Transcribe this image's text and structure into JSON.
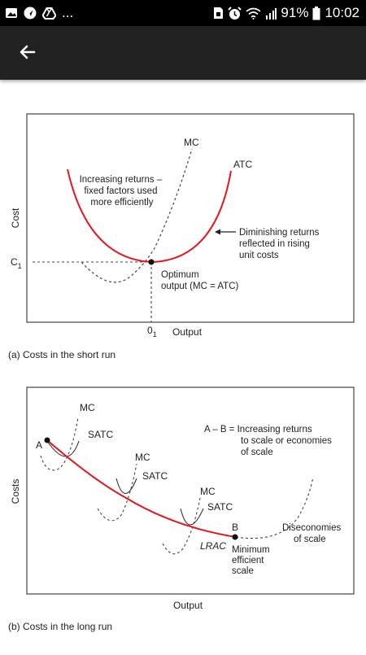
{
  "status_bar": {
    "overflow_text": "...",
    "battery_percent": "91%",
    "time": "10:02",
    "left_icons": [
      "gallery-icon",
      "navigation-icon",
      "drive-icon"
    ],
    "right_icons": [
      "sim-icon",
      "alarm-icon",
      "wifi-icon",
      "signal-icon",
      "battery-icon"
    ]
  },
  "app_bar": {
    "back_icon": "arrow-left-icon",
    "color": "#212121"
  },
  "figure": {
    "accent_color": "#e8131b",
    "short_run": {
      "caption": "(a) Costs in the short run",
      "ylabel": "Cost",
      "xlabel": "Output",
      "y_tick": "C",
      "y_tick_sub": "1",
      "x_tick": "0",
      "x_tick_sub": "1",
      "mc_label": "MC",
      "atc_label": "ATC",
      "increasing_lines": [
        "Increasing returns –",
        "fixed factors used",
        "more efficiently"
      ],
      "diminishing_lines": [
        "Diminishing returns",
        "reflected in rising",
        "unit costs"
      ],
      "optimum_lines": [
        "Optimum",
        "output (MC = ATC)"
      ]
    },
    "long_run": {
      "caption": "(b) Costs in the long run",
      "ylabel": "Costs",
      "xlabel": "Output",
      "mc_label": "MC",
      "satc_label": "SATC",
      "point_a": "A",
      "point_b": "B",
      "lrac_label": "LRAC",
      "increasing_lines": [
        "A – B = Increasing returns",
        "to scale or economies",
        "of scale"
      ],
      "diseconomies_lines": [
        "Diseconomies",
        "of scale"
      ],
      "mes_lines": [
        "Minimum",
        "efficient",
        "scale"
      ]
    }
  }
}
